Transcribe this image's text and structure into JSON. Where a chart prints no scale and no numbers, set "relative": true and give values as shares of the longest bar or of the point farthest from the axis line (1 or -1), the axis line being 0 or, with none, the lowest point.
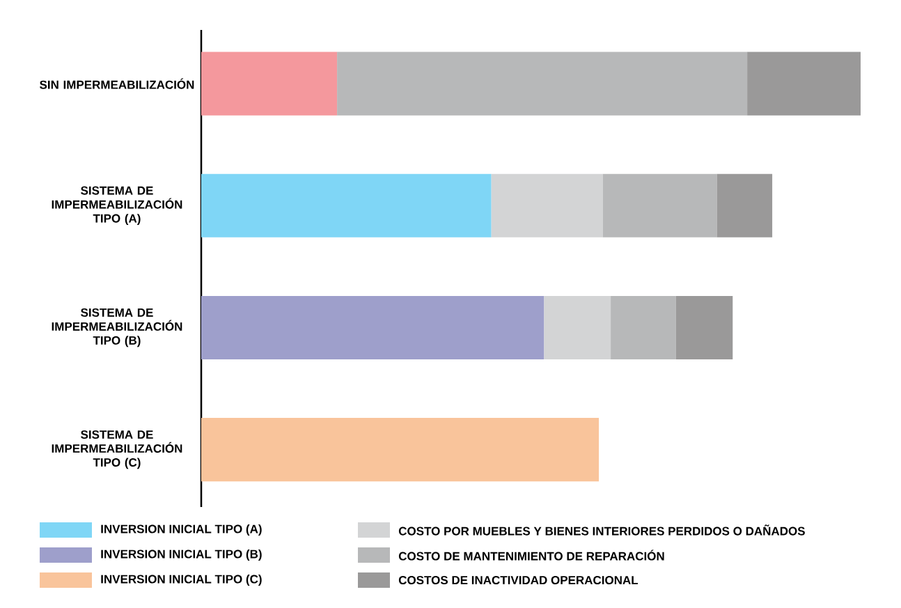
{
  "chart_data": {
    "type": "bar",
    "orientation": "horizontal",
    "stacked": true,
    "relative": true,
    "legend": "bottom",
    "categories": [
      "SIN IMPERMEABILIZACIÓN",
      "SISTEMA DE IMPERMEABILIZACIÓN TIPO (A)",
      "SISTEMA DE IMPERMEABILIZACIÓN TIPO (B)",
      "SISTEMA DE IMPERMEABILIZACIÓN TIPO (C)"
    ],
    "series": [
      {
        "color": "#f4989d",
        "values": [
          0.206,
          null,
          null,
          null
        ]
      },
      {
        "name": "INVERSION INICIAL TIPO (A)",
        "color": "#7fd6f6",
        "values": [
          null,
          0.44,
          null,
          null
        ]
      },
      {
        "name": "INVERSION INICIAL TIPO (B)",
        "color": "#9e9fcb",
        "values": [
          null,
          null,
          0.52,
          null
        ]
      },
      {
        "name": "INVERSION INICIAL TIPO (C)",
        "color": "#f9c49b",
        "values": [
          null,
          null,
          null,
          0.603
        ]
      },
      {
        "name": "COSTO POR MUEBLES Y BIENES INTERIORES PERDIDOS O DAÑADOS",
        "color": "#d3d4d5",
        "values": [
          null,
          0.169,
          0.101,
          null
        ]
      },
      {
        "name": "COSTO DE MANTENIMIENTO DE REPARACIÓN",
        "color": "#b7b8b9",
        "values": [
          0.622,
          0.173,
          0.099,
          null
        ]
      },
      {
        "name": "COSTOS DE INACTIVIDAD OPERACIONAL",
        "color": "#9a9999",
        "values": [
          0.172,
          0.084,
          0.086,
          null
        ]
      }
    ]
  }
}
